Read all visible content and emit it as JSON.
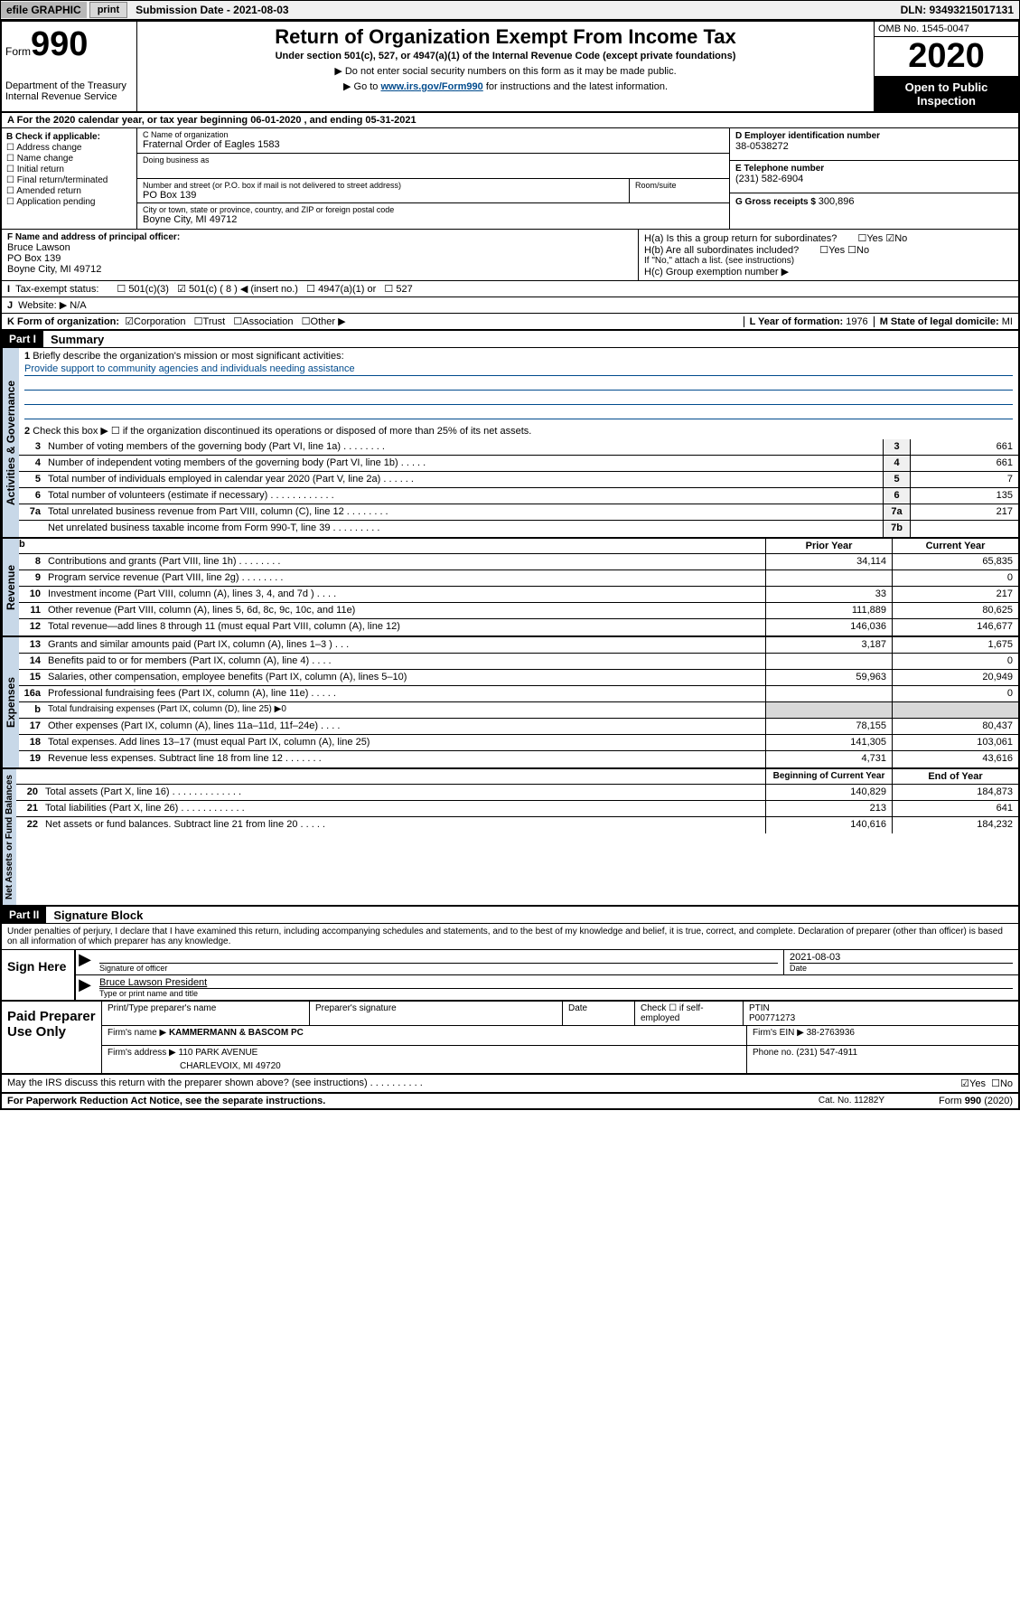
{
  "top_bar": {
    "efile": "efile GRAPHIC",
    "print_btn": "print",
    "sub_date_lbl": "Submission Date - 2021-08-03",
    "dln": "DLN: 93493215017131"
  },
  "header": {
    "form_word": "Form",
    "form_num": "990",
    "dept": "Department of the Treasury\nInternal Revenue Service",
    "title": "Return of Organization Exempt From Income Tax",
    "sub": "Under section 501(c), 527, or 4947(a)(1) of the Internal Revenue Code (except private foundations)",
    "instr1": "▶ Do not enter social security numbers on this form as it may be made public.",
    "instr2_pre": "▶ Go to ",
    "instr2_link": "www.irs.gov/Form990",
    "instr2_post": " for instructions and the latest information.",
    "omb": "OMB No. 1545-0047",
    "year": "2020",
    "open": "Open to Public Inspection"
  },
  "line_a": "A For the 2020 calendar year, or tax year beginning 06-01-2020    , and ending 05-31-2021",
  "col_b": {
    "hdr": "B Check if applicable:",
    "items": [
      "Address change",
      "Name change",
      "Initial return",
      "Final return/terminated",
      "Amended return",
      "Application pending"
    ]
  },
  "col_c": {
    "name_lbl": "C Name of organization",
    "name_val": "Fraternal Order of Eagles 1583",
    "dba_lbl": "Doing business as",
    "dba_val": "",
    "addr_lbl": "Number and street (or P.O. box if mail is not delivered to street address)",
    "addr_val": "PO Box 139",
    "room_lbl": "Room/suite",
    "city_lbl": "City or town, state or province, country, and ZIP or foreign postal code",
    "city_val": "Boyne City, MI  49712"
  },
  "col_de": {
    "d_lbl": "D Employer identification number",
    "d_val": "38-0538272",
    "e_lbl": "E Telephone number",
    "e_val": "(231) 582-6904",
    "g_lbl": "G Gross receipts $ ",
    "g_val": "300,896"
  },
  "sect_f": {
    "lbl": "F Name and address of principal officer:",
    "name": "Bruce Lawson",
    "addr1": "PO Box 139",
    "addr2": "Boyne City, MI  49712"
  },
  "sect_h": {
    "ha": "H(a)  Is this a group return for subordinates?",
    "hb": "H(b)  Are all subordinates included?",
    "hb_note": "If \"No,\" attach a list. (see instructions)",
    "hc": "H(c)  Group exemption number ▶"
  },
  "line_i": {
    "lbl": "I",
    "txt": "Tax-exempt status:",
    "opts": [
      "501(c)(3)",
      "501(c) ( 8 ) ◀ (insert no.)",
      "4947(a)(1) or",
      "527"
    ]
  },
  "line_j": {
    "lbl": "J",
    "txt": "Website: ▶",
    "val": "N/A"
  },
  "line_k": {
    "lbl": "K Form of organization:",
    "opts": [
      "Corporation",
      "Trust",
      "Association",
      "Other ▶"
    ]
  },
  "line_l": {
    "lbl": "L Year of formation: ",
    "val": "1976"
  },
  "line_m": {
    "lbl": "M State of legal domicile: ",
    "val": "MI"
  },
  "part1": {
    "hdr": "Part I",
    "title": "Summary",
    "q1_lbl": "1",
    "q1": "Briefly describe the organization's mission or most significant activities:",
    "mission": "Provide support to community agencies and individuals needing assistance",
    "q2_lbl": "2",
    "q2": "Check this box ▶ ☐  if the organization discontinued its operations or disposed of more than 25% of its net assets."
  },
  "governance_rows": [
    {
      "n": "3",
      "t": "Number of voting members of the governing body (Part VI, line 1a)   .   .   .   .   .   .   .   .",
      "bn": "3",
      "v": "661"
    },
    {
      "n": "4",
      "t": "Number of independent voting members of the governing body (Part VI, line 1b)   .   .   .   .   .",
      "bn": "4",
      "v": "661"
    },
    {
      "n": "5",
      "t": "Total number of individuals employed in calendar year 2020 (Part V, line 2a)   .   .   .   .   .   .",
      "bn": "5",
      "v": "7"
    },
    {
      "n": "6",
      "t": "Total number of volunteers (estimate if necessary)   .   .   .   .   .   .   .   .   .   .   .   .",
      "bn": "6",
      "v": "135"
    },
    {
      "n": "7a",
      "t": "Total unrelated business revenue from Part VIII, column (C), line 12   .   .   .   .   .   .   .   .",
      "bn": "7a",
      "v": "217"
    },
    {
      "n": "",
      "t": "Net unrelated business taxable income from Form 990-T, line 39   .   .   .   .   .   .   .   .   .",
      "bn": "7b",
      "v": ""
    }
  ],
  "rev_hdr": {
    "b": "b",
    "prior": "Prior Year",
    "current": "Current Year"
  },
  "revenue_rows": [
    {
      "n": "8",
      "t": "Contributions and grants (Part VIII, line 1h)   .   .   .   .   .   .   .   .",
      "p": "34,114",
      "c": "65,835"
    },
    {
      "n": "9",
      "t": "Program service revenue (Part VIII, line 2g)   .   .   .   .   .   .   .   .",
      "p": "",
      "c": "0"
    },
    {
      "n": "10",
      "t": "Investment income (Part VIII, column (A), lines 3, 4, and 7d )   .   .   .   .",
      "p": "33",
      "c": "217"
    },
    {
      "n": "11",
      "t": "Other revenue (Part VIII, column (A), lines 5, 6d, 8c, 9c, 10c, and 11e)",
      "p": "111,889",
      "c": "80,625"
    },
    {
      "n": "12",
      "t": "Total revenue—add lines 8 through 11 (must equal Part VIII, column (A), line 12)",
      "p": "146,036",
      "c": "146,677"
    }
  ],
  "expense_rows": [
    {
      "n": "13",
      "t": "Grants and similar amounts paid (Part IX, column (A), lines 1–3 )   .   .   .",
      "p": "3,187",
      "c": "1,675"
    },
    {
      "n": "14",
      "t": "Benefits paid to or for members (Part IX, column (A), line 4)   .   .   .   .",
      "p": "",
      "c": "0"
    },
    {
      "n": "15",
      "t": "Salaries, other compensation, employee benefits (Part IX, column (A), lines 5–10)",
      "p": "59,963",
      "c": "20,949"
    },
    {
      "n": "16a",
      "t": "Professional fundraising fees (Part IX, column (A), line 11e)   .   .   .   .   .",
      "p": "",
      "c": "0"
    },
    {
      "n": "b",
      "t": "Total fundraising expenses (Part IX, column (D), line 25) ▶0",
      "p": null,
      "c": null
    },
    {
      "n": "17",
      "t": "Other expenses (Part IX, column (A), lines 11a–11d, 11f–24e)   .   .   .   .",
      "p": "78,155",
      "c": "80,437"
    },
    {
      "n": "18",
      "t": "Total expenses. Add lines 13–17 (must equal Part IX, column (A), line 25)",
      "p": "141,305",
      "c": "103,061"
    },
    {
      "n": "19",
      "t": "Revenue less expenses. Subtract line 18 from line 12   .   .   .   .   .   .   .",
      "p": "4,731",
      "c": "43,616"
    }
  ],
  "net_hdr": {
    "prior": "Beginning of Current Year",
    "current": "End of Year"
  },
  "net_rows": [
    {
      "n": "20",
      "t": "Total assets (Part X, line 16)   .   .   .   .   .   .   .   .   .   .   .   .   .",
      "p": "140,829",
      "c": "184,873"
    },
    {
      "n": "21",
      "t": "Total liabilities (Part X, line 26)   .   .   .   .   .   .   .   .   .   .   .   .",
      "p": "213",
      "c": "641"
    },
    {
      "n": "22",
      "t": "Net assets or fund balances. Subtract line 21 from line 20   .   .   .   .   .",
      "p": "140,616",
      "c": "184,232"
    }
  ],
  "part2": {
    "hdr": "Part II",
    "title": "Signature Block"
  },
  "perjury": "Under penalties of perjury, I declare that I have examined this return, including accompanying schedules and statements, and to the best of my knowledge and belief, it is true, correct, and complete. Declaration of preparer (other than officer) is based on all information of which preparer has any knowledge.",
  "sign": {
    "label": "Sign Here",
    "date": "2021-08-03",
    "sig_lbl": "Signature of officer",
    "date_lbl": "Date",
    "name": "Bruce Lawson President",
    "name_lbl": "Type or print name and title"
  },
  "prep": {
    "label": "Paid Preparer Use Only",
    "r1": {
      "c1": "Print/Type preparer's name",
      "c2": "Preparer's signature",
      "c3": "Date",
      "c4_lbl": "Check ☐ if self-employed",
      "c5_lbl": "PTIN",
      "c5": "P00771273"
    },
    "r2": {
      "lbl": "Firm's name      ▶",
      "val": "KAMMERMANN & BASCOM PC",
      "ein_lbl": "Firm's EIN ▶",
      "ein": "38-2763936"
    },
    "r3": {
      "lbl": "Firm's address ▶",
      "val": "110 PARK AVENUE",
      "ph_lbl": "Phone no.",
      "ph": "(231) 547-4911"
    },
    "r3b": "CHARLEVOIX, MI  49720"
  },
  "discuss": "May the IRS discuss this return with the preparer shown above? (see instructions)   .   .   .   .   .   .   .   .   .   .",
  "yes": "Yes",
  "no": "No",
  "footer": {
    "left": "For Paperwork Reduction Act Notice, see the separate instructions.",
    "mid": "Cat. No. 11282Y",
    "right": "Form 990 (2020)"
  },
  "side_labels": {
    "gov": "Activities & Governance",
    "rev": "Revenue",
    "exp": "Expenses",
    "net": "Net Assets or Fund Balances"
  }
}
